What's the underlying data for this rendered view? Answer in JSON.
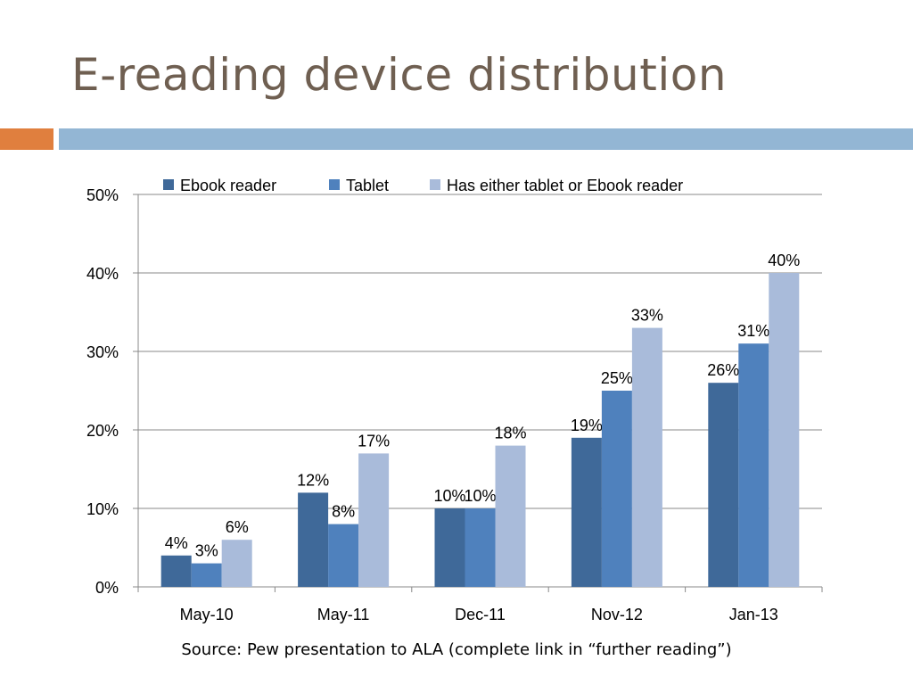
{
  "slide": {
    "title": "E-reading device distribution",
    "source": "Source:  Pew presentation to ALA (complete link in “further reading”)"
  },
  "colors": {
    "title": "#6f5f51",
    "accent_orange": "#e07f3e",
    "accent_blue": "#93b6d4",
    "gridline": "#888888",
    "axis": "#888888"
  },
  "chart_data": {
    "type": "bar",
    "title": "",
    "xlabel": "",
    "ylabel": "",
    "ylim": [
      0,
      50
    ],
    "y_ticks": [
      0,
      10,
      20,
      30,
      40,
      50
    ],
    "y_tick_labels": [
      "0%",
      "10%",
      "20%",
      "30%",
      "40%",
      "50%"
    ],
    "grid": true,
    "legend_position": "top",
    "categories": [
      "May-10",
      "May-11",
      "Dec-11",
      "Nov-12",
      "Jan-13"
    ],
    "series": [
      {
        "name": "Ebook reader",
        "color": "#3f6999",
        "values": [
          4,
          12,
          10,
          19,
          26
        ],
        "labels": [
          "4%",
          "12%",
          "10%",
          "19%",
          "26%"
        ]
      },
      {
        "name": "Tablet",
        "color": "#4f81bd",
        "values": [
          3,
          8,
          10,
          25,
          31
        ],
        "labels": [
          "3%",
          "8%",
          "10%",
          "25%",
          "31%"
        ]
      },
      {
        "name": "Has either tablet or Ebook reader",
        "color": "#a9bbda",
        "values": [
          6,
          17,
          18,
          33,
          40
        ],
        "labels": [
          "6%",
          "17%",
          "18%",
          "33%",
          "40%"
        ]
      }
    ]
  }
}
